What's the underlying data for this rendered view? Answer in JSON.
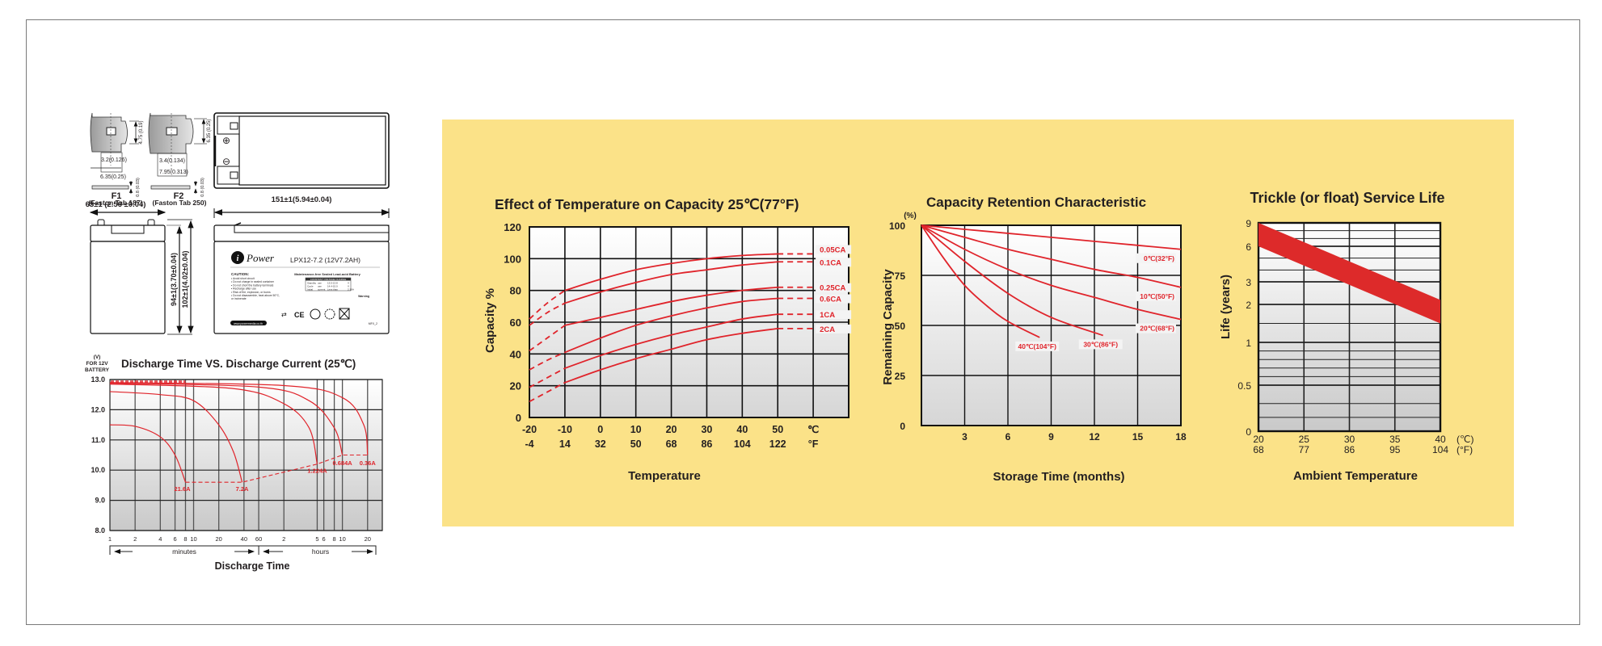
{
  "specs_drawing": {
    "terminal_f1": {
      "label": "F1",
      "sublabel": "(Faston Tab 187)",
      "height_dim": "4.75\n(0.19)",
      "width_dim": "3.2(0.126)",
      "tab_dim": "6.35(0.25)",
      "thickness": "0.8\n(0.03)"
    },
    "terminal_f2": {
      "label": "F2",
      "sublabel": "(Faston Tab 250)",
      "height_dim": "6.35\n(0.25)",
      "width_dim": "3.4(0.134)",
      "tab_dim": "7.95(0.313)",
      "thickness": "0.8\n(0.03)"
    },
    "top_view": {
      "plus_symbol": "⊕",
      "minus_symbol": "⊖"
    },
    "length_dim": "151±1(5.94±0.04)",
    "width_dim": "65±1 (2.56 ±0.04)",
    "height_dim_body": "94±1(3.70±0.04)",
    "height_dim_total": "102±1(4.02±0.04)",
    "label": {
      "brand": "Power",
      "brand_mark": "i",
      "model": "LPX12-7.2 (12V7.2AH)",
      "caution_title": "CAUTION:",
      "caution_lines": [
        "• Avoid short circuit",
        "• Do not charge in sealed container",
        "• Do not short the battery terminals",
        "• Recharge after use",
        "• Risk of fire, explosion, or burns",
        "• Do not disassemble, heat above 50°C,",
        "  or incinerate"
      ],
      "battery_type": "Maintenance-free Sealed Lead-acid Battery",
      "charge_header": "CONSTANT VOLTAGE CHARGE",
      "charge_rows": [
        [
          "Standby",
          "use",
          "13.5-13.8",
          "V"
        ],
        [
          "Cycle",
          "use",
          "14.4-15.0",
          "V"
        ],
        [
          "Initial",
          "current",
          "Less than",
          "2.16A"
        ]
      ],
      "warning": "Warning",
      "website": "www.powermedia.co.th",
      "code": "MFX_2"
    }
  },
  "chart_data": [
    {
      "type": "line",
      "title": "Discharge Time VS. Discharge Current (25℃)",
      "ylabel": "(V) FOR 12V BATTERY",
      "xlabel": "Discharge Time",
      "yticks": [
        "13.0",
        "12.0",
        "11.0",
        "10.0",
        "9.0",
        "8.0"
      ],
      "ylim": [
        8.0,
        13.0
      ],
      "xscale": "log",
      "xticks_minutes": [
        "1",
        "2",
        "4",
        "6",
        "8",
        "10",
        "20",
        "40"
      ],
      "xticks_hours": [
        "60",
        "2",
        "5",
        "6",
        "8",
        "10",
        "20"
      ],
      "x_unit_labels": [
        "minutes",
        "hours"
      ],
      "grid": true,
      "series": [
        {
          "name": "21.6A",
          "points": [
            [
              1,
              11.5
            ],
            [
              2,
              11.45
            ],
            [
              4,
              11.1
            ],
            [
              6,
              10.5
            ],
            [
              8,
              9.6
            ]
          ]
        },
        {
          "name": "7.2A",
          "points": [
            [
              1,
              12.6
            ],
            [
              4,
              12.5
            ],
            [
              10,
              12.3
            ],
            [
              20,
              11.5
            ],
            [
              30,
              10.6
            ],
            [
              38,
              9.6
            ]
          ]
        },
        {
          "name": "1.224A",
          "points": [
            [
              1,
              12.85
            ],
            [
              30,
              12.7
            ],
            [
              120,
              12.2
            ],
            [
              240,
              11.4
            ],
            [
              300,
              10.2
            ]
          ]
        },
        {
          "name": "0.684A",
          "points": [
            [
              1,
              12.88
            ],
            [
              60,
              12.75
            ],
            [
              240,
              12.3
            ],
            [
              480,
              11.4
            ],
            [
              600,
              10.5
            ]
          ]
        },
        {
          "name": "0.36A",
          "points": [
            [
              1,
              12.9
            ],
            [
              120,
              12.8
            ],
            [
              600,
              12.4
            ],
            [
              1080,
              11.5
            ],
            [
              1200,
              10.5
            ]
          ]
        }
      ],
      "cutoff_line": {
        "style": "dashed",
        "points": [
          [
            8,
            9.6
          ],
          [
            38,
            9.6
          ],
          [
            300,
            10.2
          ],
          [
            600,
            10.5
          ],
          [
            1200,
            10.5
          ]
        ]
      },
      "annotations": [
        "21.6A",
        "7.2A",
        "1.224A",
        "0.684A",
        "0.36A"
      ]
    },
    {
      "type": "line",
      "title": "Effect of Temperature on Capacity  25℃(77°F)",
      "xlabel": "Temperature",
      "ylabel": "Capacity %",
      "ylim": [
        0,
        120
      ],
      "xlim": [
        -20,
        70
      ],
      "yticks": [
        "0",
        "20",
        "40",
        "60",
        "80",
        "100",
        "120"
      ],
      "xticks_c": [
        "-20",
        "-10",
        "0",
        "10",
        "20",
        "30",
        "40",
        "50",
        "℃"
      ],
      "xticks_f": [
        "-4",
        "14",
        "32",
        "50",
        "68",
        "86",
        "104",
        "122",
        "°F"
      ],
      "grid": true,
      "series": [
        {
          "name": "0.05CA",
          "x": [
            -20,
            -15,
            -10,
            0,
            10,
            20,
            30,
            40,
            50,
            60
          ],
          "y": [
            62,
            72,
            80,
            87,
            93,
            97,
            100,
            102,
            103,
            103
          ]
        },
        {
          "name": "0.1CA",
          "x": [
            -20,
            -15,
            -10,
            0,
            10,
            20,
            30,
            40,
            50,
            60
          ],
          "y": [
            58,
            66,
            72,
            79,
            85,
            90,
            93,
            96,
            98,
            98
          ]
        },
        {
          "name": "0.25CA",
          "x": [
            -20,
            -15,
            -10,
            0,
            10,
            20,
            30,
            40,
            50,
            60
          ],
          "y": [
            42,
            50,
            58,
            63,
            68,
            73,
            77,
            80,
            82,
            82
          ]
        },
        {
          "name": "0.6CA",
          "x": [
            -20,
            -15,
            -10,
            0,
            10,
            20,
            30,
            40,
            50,
            60
          ],
          "y": [
            30,
            36,
            41,
            50,
            58,
            64,
            69,
            73,
            75,
            75
          ]
        },
        {
          "name": "1CA",
          "x": [
            -20,
            -15,
            -10,
            0,
            10,
            20,
            30,
            40,
            50,
            60
          ],
          "y": [
            19,
            25,
            31,
            39,
            46,
            52,
            57,
            62,
            65,
            65
          ]
        },
        {
          "name": "2CA",
          "x": [
            -20,
            -15,
            -10,
            0,
            10,
            20,
            30,
            40,
            50,
            60
          ],
          "y": [
            10,
            16,
            22,
            30,
            37,
            43,
            49,
            53,
            56,
            56
          ]
        }
      ],
      "dashed_ranges": "x < -10 and x > 50"
    },
    {
      "type": "line",
      "title": "Capacity Retention Characteristic",
      "xlabel": "Storage Time (months)",
      "ylabel": "Remaining Capacity",
      "yunit": "(%)",
      "ylim": [
        0,
        100
      ],
      "xlim": [
        0,
        18
      ],
      "yticks": [
        "0",
        "25",
        "50",
        "75",
        "100"
      ],
      "xticks": [
        "3",
        "6",
        "9",
        "12",
        "15",
        "18"
      ],
      "grid": true,
      "series": [
        {
          "name": "0℃(32°F)",
          "x": [
            0,
            3,
            6,
            9,
            12,
            15,
            18
          ],
          "y": [
            100,
            98,
            96,
            94,
            92,
            90,
            88
          ]
        },
        {
          "name": "10℃(50°F)",
          "x": [
            0,
            3,
            6,
            9,
            12,
            15,
            18
          ],
          "y": [
            100,
            94,
            88,
            83,
            78,
            74,
            69
          ]
        },
        {
          "name": "20℃(68°F)",
          "x": [
            0,
            3,
            6,
            9,
            12,
            15,
            18
          ],
          "y": [
            100,
            88,
            78,
            70,
            64,
            58,
            53
          ]
        },
        {
          "name": "30℃(86°F)",
          "x": [
            0,
            3,
            6,
            9,
            12.6
          ],
          "y": [
            100,
            82,
            66,
            54,
            45
          ]
        },
        {
          "name": "40℃(104°F)",
          "x": [
            0,
            1.5,
            3,
            4.5,
            6,
            8.2
          ],
          "y": [
            100,
            84,
            70,
            60,
            52,
            44
          ]
        }
      ]
    },
    {
      "type": "area",
      "title": "Trickle (or float) Service Life",
      "xlabel": "Ambient Temperature",
      "ylabel": "Life (years)",
      "yscale": "log-like",
      "ylim": [
        0,
        9
      ],
      "xlim": [
        20,
        40
      ],
      "yticks": [
        "0",
        "0.5",
        "1",
        "2",
        "3",
        "6",
        "9"
      ],
      "xticks_c": [
        "20",
        "25",
        "30",
        "35",
        "40"
      ],
      "xticks_f": [
        "68",
        "77",
        "86",
        "95",
        "104"
      ],
      "x_units": [
        "(℃)",
        "(°F)"
      ],
      "grid": true,
      "band": {
        "x": [
          20,
          40
        ],
        "upper": [
          9,
          2.2
        ],
        "lower": [
          6,
          1.5
        ]
      }
    }
  ],
  "theme": {
    "panel_bg": "#fbe288",
    "curve_color": "#e0242b",
    "grid_color": "#111111",
    "frame_color": "#7a7a7a"
  }
}
